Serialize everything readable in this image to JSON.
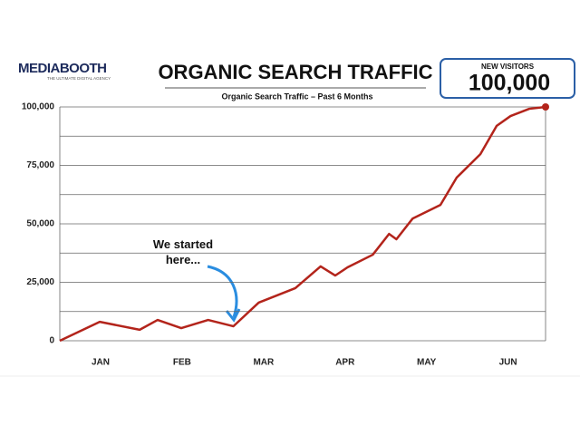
{
  "brand": {
    "name": "MEDIABOOTH",
    "tagline": "THE ULTIMATE DIGITAL AGENCY"
  },
  "kpi": {
    "label": "NEW VISITORS",
    "value": 100000,
    "value_label": "100,000"
  },
  "chart_data": {
    "type": "line",
    "title": "ORGANIC SEARCH TRAFFIC",
    "subtitle": "Organic Search Traffic – Past 6 Months",
    "annotation": [
      "We started",
      "here..."
    ],
    "x": [
      0,
      0.49,
      0.98,
      1.2,
      1.49,
      1.82,
      2.13,
      2.44,
      2.89,
      3.2,
      3.38,
      3.53,
      3.84,
      4.04,
      4.13,
      4.33,
      4.67,
      4.87,
      5.16,
      5.36,
      5.53,
      5.76,
      5.96
    ],
    "series": [
      {
        "name": "Organic Search Traffic",
        "color": "#b3241b",
        "values": [
          0,
          8100,
          4700,
          8900,
          5400,
          8900,
          6200,
          16300,
          22500,
          31800,
          27900,
          31400,
          36800,
          45700,
          43400,
          52300,
          58100,
          69800,
          79800,
          91900,
          96100,
          99200,
          100000
        ]
      }
    ],
    "xlim": [
      0,
      5.96
    ],
    "xticks": [
      {
        "value": 0.5,
        "label": "JAN"
      },
      {
        "value": 1.5,
        "label": "FEB"
      },
      {
        "value": 2.5,
        "label": "MAR"
      },
      {
        "value": 3.5,
        "label": "APR"
      },
      {
        "value": 4.5,
        "label": "MAY"
      },
      {
        "value": 5.5,
        "label": "JUN"
      }
    ],
    "ylim": [
      0,
      100000
    ],
    "yticks": [
      0,
      {
        "value": 25000,
        "label": "25,000"
      },
      {
        "value": 50000,
        "label": "50,000"
      },
      {
        "value": 75000,
        "label": "75,000"
      },
      {
        "value": 100000,
        "label": "100,000"
      }
    ],
    "minor_yticks": [
      12500,
      37500,
      62500,
      87500
    ],
    "grid": true
  }
}
